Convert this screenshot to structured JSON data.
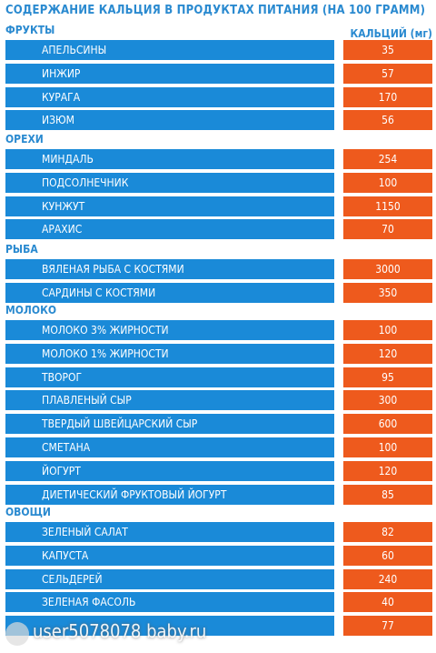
{
  "title": "СОДЕРЖАНИЕ КАЛЬЦИЯ В ПРОДУКТАХ ПИТАНИЯ (НА 100 ГРАММ)",
  "column_header": "КАЛЬЦИЙ (мг)",
  "watermark": "user5078078 baby.ru",
  "colors": {
    "blue": "#1a8ad8",
    "orange": "#ee5a1d",
    "heading": "#2a8ad0"
  },
  "sections": [
    {
      "name": "ФРУКТЫ",
      "items": [
        {
          "name": "АПЕЛЬСИНЫ",
          "value": "35"
        },
        {
          "name": "ИНЖИР",
          "value": "57"
        },
        {
          "name": "КУРАГА",
          "value": "170"
        },
        {
          "name": "ИЗЮМ",
          "value": "56"
        }
      ]
    },
    {
      "name": "ОРЕХИ",
      "items": [
        {
          "name": "МИНДАЛЬ",
          "value": "254"
        },
        {
          "name": "ПОДСОЛНЕЧНИК",
          "value": "100"
        },
        {
          "name": "КУНЖУТ",
          "value": "1150"
        },
        {
          "name": "АРАХИС",
          "value": "70"
        }
      ]
    },
    {
      "name": "РЫБА",
      "items": [
        {
          "name": "ВЯЛЕНАЯ РЫБА С КОСТЯМИ",
          "value": "3000"
        },
        {
          "name": "САРДИНЫ С КОСТЯМИ",
          "value": "350"
        }
      ]
    },
    {
      "name": "МОЛОКО",
      "items": [
        {
          "name": "МОЛОКО 3% ЖИРНОСТИ",
          "value": "100"
        },
        {
          "name": "МОЛОКО 1% ЖИРНОСТИ",
          "value": "120"
        },
        {
          "name": "ТВОРОГ",
          "value": "95"
        },
        {
          "name": "ПЛАВЛЕНЫЙ СЫР",
          "value": "300"
        },
        {
          "name": "ТВЕРДЫЙ ШВЕЙЦАРСКИЙ СЫР",
          "value": "600"
        },
        {
          "name": "СМЕТАНА",
          "value": "100"
        },
        {
          "name": "ЙОГУРТ",
          "value": "120"
        },
        {
          "name": "ДИЕТИЧЕСКИЙ ФРУКТОВЫЙ ЙОГУРТ",
          "value": "85"
        }
      ]
    },
    {
      "name": "ОВОЩИ",
      "items": [
        {
          "name": "ЗЕЛЕНЫЙ САЛАТ",
          "value": "82"
        },
        {
          "name": "КАПУСТА",
          "value": "60"
        },
        {
          "name": "СЕЛЬДЕРЕЙ",
          "value": "240"
        },
        {
          "name": "ЗЕЛЕНАЯ ФАСОЛЬ",
          "value": "40"
        },
        {
          "name": "",
          "value": "77"
        }
      ]
    }
  ]
}
